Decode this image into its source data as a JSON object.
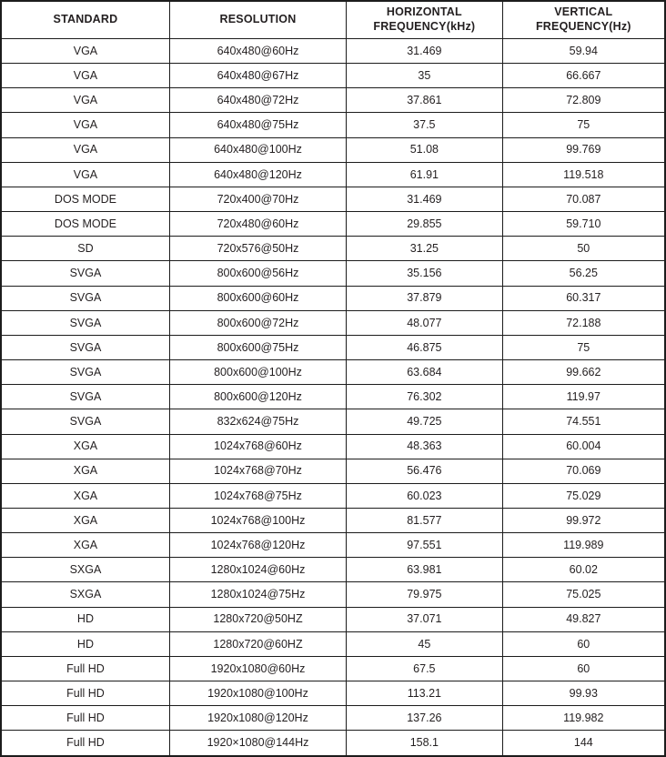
{
  "table": {
    "columns": [
      "STANDARD",
      "RESOLUTION",
      "HORIZONTAL FREQUENCY(kHz)",
      "VERTICAL FREQUENCY(Hz)"
    ],
    "rows": [
      [
        "VGA",
        "640x480@60Hz",
        "31.469",
        "59.94"
      ],
      [
        "VGA",
        "640x480@67Hz",
        "35",
        "66.667"
      ],
      [
        "VGA",
        "640x480@72Hz",
        "37.861",
        "72.809"
      ],
      [
        "VGA",
        "640x480@75Hz",
        "37.5",
        "75"
      ],
      [
        "VGA",
        "640x480@100Hz",
        "51.08",
        "99.769"
      ],
      [
        "VGA",
        "640x480@120Hz",
        "61.91",
        "119.518"
      ],
      [
        "DOS MODE",
        "720x400@70Hz",
        "31.469",
        "70.087"
      ],
      [
        "DOS MODE",
        "720x480@60Hz",
        "29.855",
        "59.710"
      ],
      [
        "SD",
        "720x576@50Hz",
        "31.25",
        "50"
      ],
      [
        "SVGA",
        "800x600@56Hz",
        "35.156",
        "56.25"
      ],
      [
        "SVGA",
        "800x600@60Hz",
        "37.879",
        "60.317"
      ],
      [
        "SVGA",
        "800x600@72Hz",
        "48.077",
        "72.188"
      ],
      [
        "SVGA",
        "800x600@75Hz",
        "46.875",
        "75"
      ],
      [
        "SVGA",
        "800x600@100Hz",
        "63.684",
        "99.662"
      ],
      [
        "SVGA",
        "800x600@120Hz",
        "76.302",
        "119.97"
      ],
      [
        "SVGA",
        "832x624@75Hz",
        "49.725",
        "74.551"
      ],
      [
        "XGA",
        "1024x768@60Hz",
        "48.363",
        "60.004"
      ],
      [
        "XGA",
        "1024x768@70Hz",
        "56.476",
        "70.069"
      ],
      [
        "XGA",
        "1024x768@75Hz",
        "60.023",
        "75.029"
      ],
      [
        "XGA",
        "1024x768@100Hz",
        "81.577",
        "99.972"
      ],
      [
        "XGA",
        "1024x768@120Hz",
        "97.551",
        "119.989"
      ],
      [
        "SXGA",
        "1280x1024@60Hz",
        "63.981",
        "60.02"
      ],
      [
        "SXGA",
        "1280x1024@75Hz",
        "79.975",
        "75.025"
      ],
      [
        "HD",
        "1280x720@50HZ",
        "37.071",
        "49.827"
      ],
      [
        "HD",
        "1280x720@60HZ",
        "45",
        "60"
      ],
      [
        "Full HD",
        "1920x1080@60Hz",
        "67.5",
        "60"
      ],
      [
        "Full HD",
        "1920x1080@100Hz",
        "113.21",
        "99.93"
      ],
      [
        "Full HD",
        "1920x1080@120Hz",
        "137.26",
        "119.982"
      ],
      [
        "Full HD",
        "1920×1080@144Hz",
        "158.1",
        "144"
      ]
    ],
    "cell_names": [
      "standard-cell",
      "resolution-cell",
      "horizontal-frequency-cell",
      "vertical-frequency-cell"
    ]
  },
  "colors": {
    "border": "#1c1c1c",
    "text": "#231f20",
    "background": "#ffffff"
  }
}
